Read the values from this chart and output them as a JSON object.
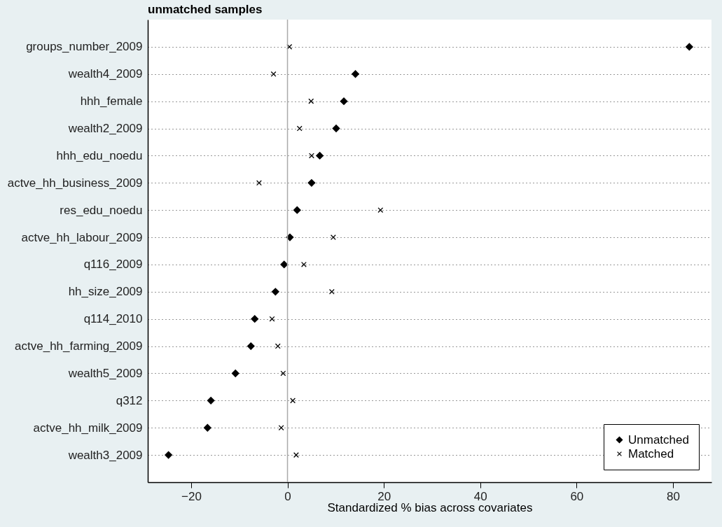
{
  "chart_data": {
    "type": "scatter",
    "title": "unmatched samples",
    "xlabel": "Standardized % bias across covariates",
    "categories": [
      "groups_number_2009",
      "wealth4_2009",
      "hhh_female",
      "wealth2_2009",
      "hhh_edu_noedu",
      "actve_hh_business_2009",
      "res_edu_noedu",
      "actve_hh_labour_2009",
      "q116_2009",
      "hh_size_2009",
      "q114_2010",
      "actve_hh_farming_2009",
      "wealth5_2009",
      "q312",
      "actve_hh_milk_2009",
      "wealth3_2009"
    ],
    "orientation": "horizontal",
    "series": [
      {
        "name": "Unmatched",
        "color": "#000000",
        "marker": "diamond",
        "values": [
          83.4,
          14.1,
          11.7,
          10.1,
          6.7,
          5.0,
          2.0,
          0.5,
          -0.7,
          -2.5,
          -6.8,
          -7.6,
          -10.8,
          -15.9,
          -16.6,
          -24.7
        ]
      },
      {
        "name": "Matched",
        "color": "#000000",
        "marker": "cross",
        "values": [
          0.4,
          -2.9,
          4.9,
          2.5,
          5.0,
          -5.9,
          19.3,
          9.5,
          3.4,
          9.2,
          -3.2,
          -2.0,
          -0.9,
          1.1,
          -1.3,
          1.8
        ]
      }
    ],
    "xlim": [
      -29,
      88
    ],
    "xticks": [
      -20,
      0,
      20,
      40,
      60,
      80
    ],
    "ref_lines": [
      {
        "axis": "x",
        "value": 0,
        "color": "#aaaaaa"
      }
    ],
    "grid": "y",
    "legend": "bottom right"
  }
}
